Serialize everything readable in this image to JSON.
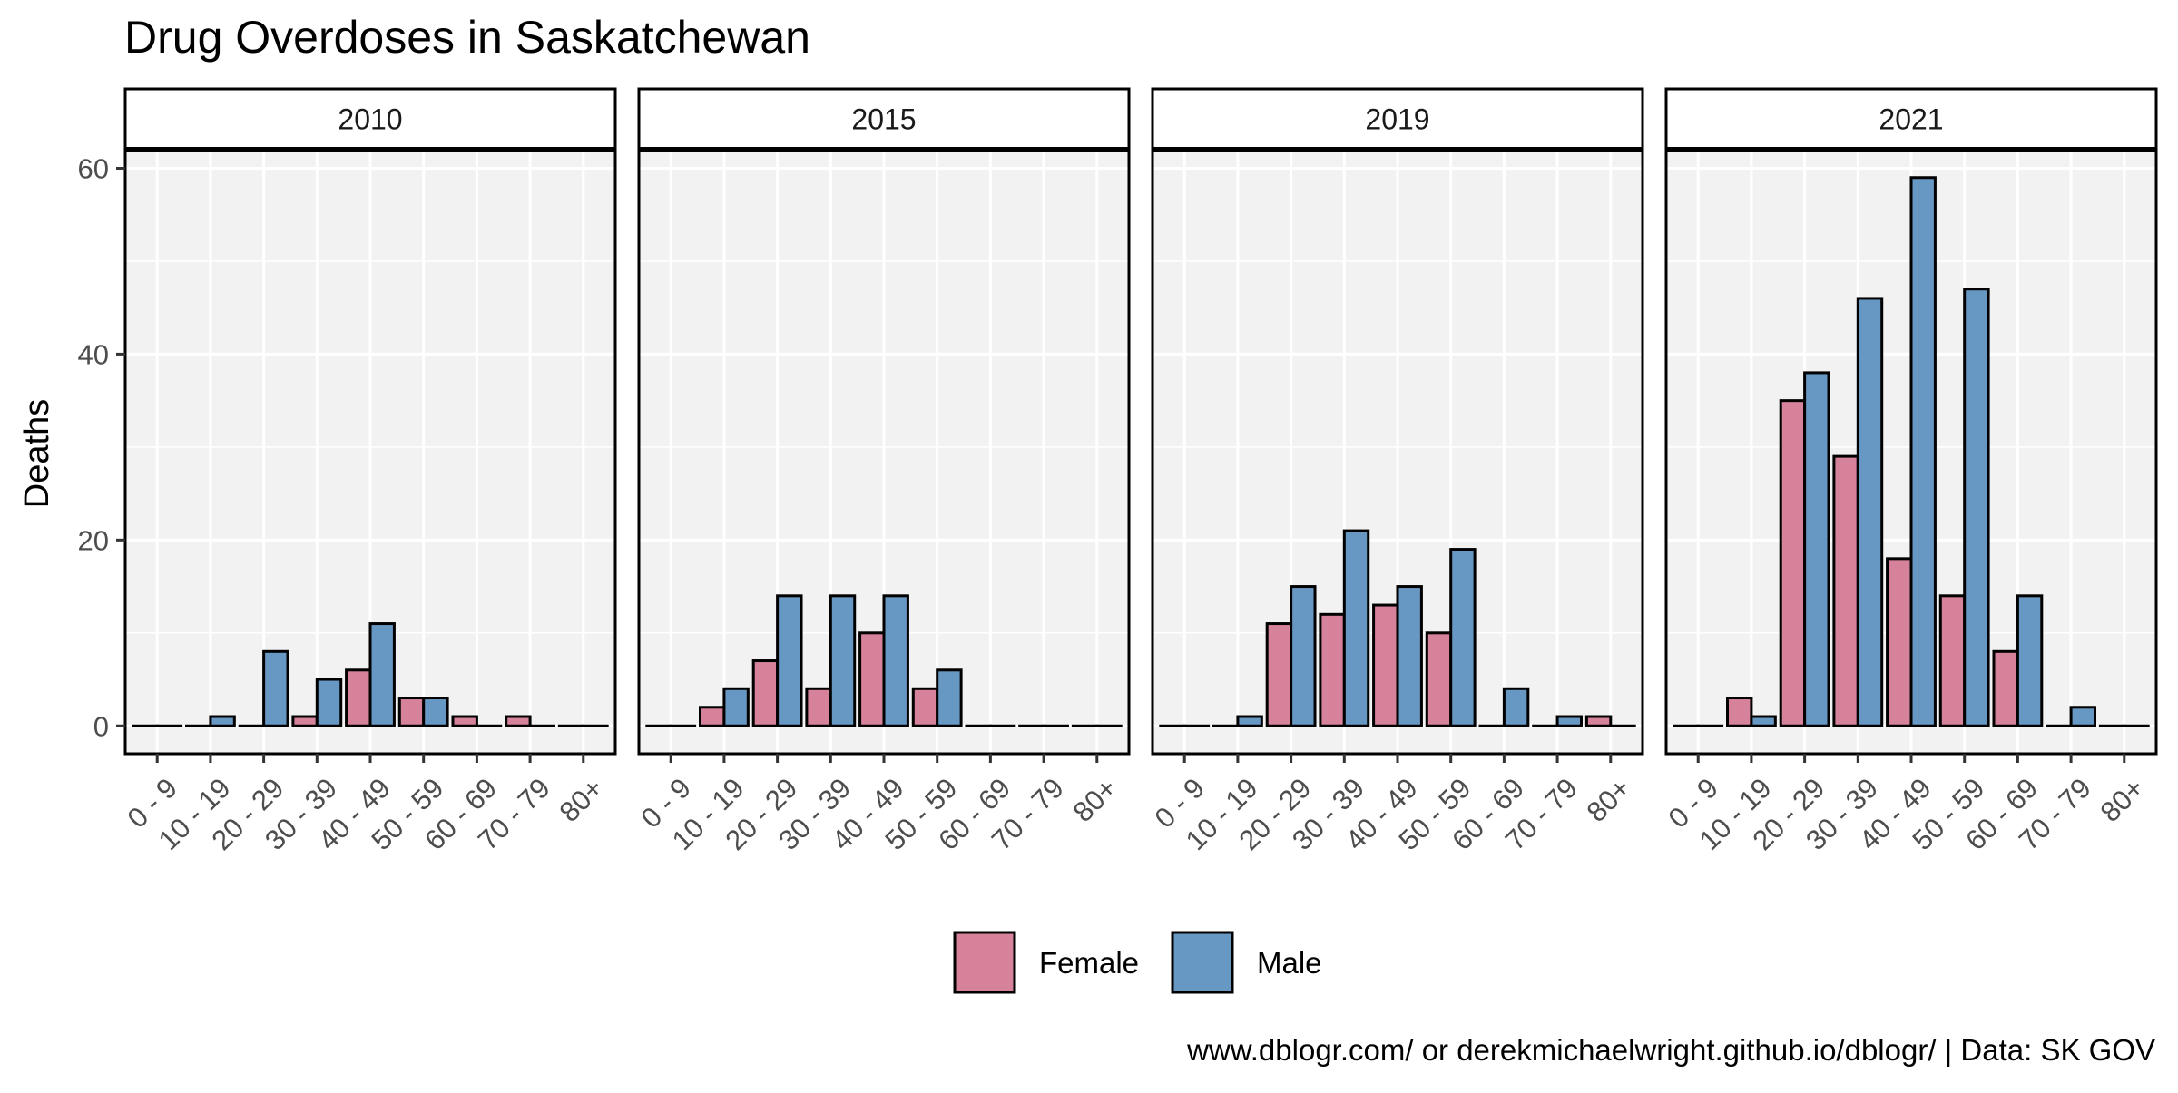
{
  "chart_data": {
    "type": "bar",
    "title": "Drug Overdoses in Saskatchewan",
    "xlabel": "",
    "ylabel": "Deaths",
    "ylim": [
      -3,
      62
    ],
    "yticks": [
      0,
      20,
      40,
      60
    ],
    "grid": true,
    "legend_placement": "bottom",
    "caption": "www.dblogr.com/ or derekmichaelwright.github.io/dblogr/ | Data: SK GOV",
    "categories": [
      "0 - 9",
      "10 - 19",
      "20 - 29",
      "30 - 39",
      "40 - 49",
      "50 - 59",
      "60 - 69",
      "70 - 79",
      "80+"
    ],
    "series_names": [
      "Female",
      "Male"
    ],
    "colors": {
      "Female": "#d5829a",
      "Male": "#6797c3",
      "panel_bg": "#f2f2f2",
      "grid": "#ffffff",
      "text": "#4d4d4d"
    },
    "panels": [
      {
        "label": "2010",
        "series": [
          {
            "name": "Female",
            "values": [
              0,
              0,
              0,
              1,
              6,
              3,
              1,
              1,
              0
            ]
          },
          {
            "name": "Male",
            "values": [
              0,
              1,
              8,
              5,
              11,
              3,
              0,
              0,
              0
            ]
          }
        ]
      },
      {
        "label": "2015",
        "series": [
          {
            "name": "Female",
            "values": [
              0,
              2,
              7,
              4,
              10,
              4,
              0,
              0,
              0
            ]
          },
          {
            "name": "Male",
            "values": [
              0,
              4,
              14,
              14,
              14,
              6,
              0,
              0,
              0
            ]
          }
        ]
      },
      {
        "label": "2019",
        "series": [
          {
            "name": "Female",
            "values": [
              0,
              0,
              11,
              12,
              13,
              10,
              0,
              0,
              1
            ]
          },
          {
            "name": "Male",
            "values": [
              0,
              1,
              15,
              21,
              15,
              19,
              4,
              1,
              0
            ]
          }
        ]
      },
      {
        "label": "2021",
        "series": [
          {
            "name": "Female",
            "values": [
              0,
              3,
              35,
              29,
              18,
              14,
              8,
              0,
              0
            ]
          },
          {
            "name": "Male",
            "values": [
              0,
              1,
              38,
              46,
              59,
              47,
              14,
              2,
              0
            ]
          }
        ]
      }
    ]
  }
}
